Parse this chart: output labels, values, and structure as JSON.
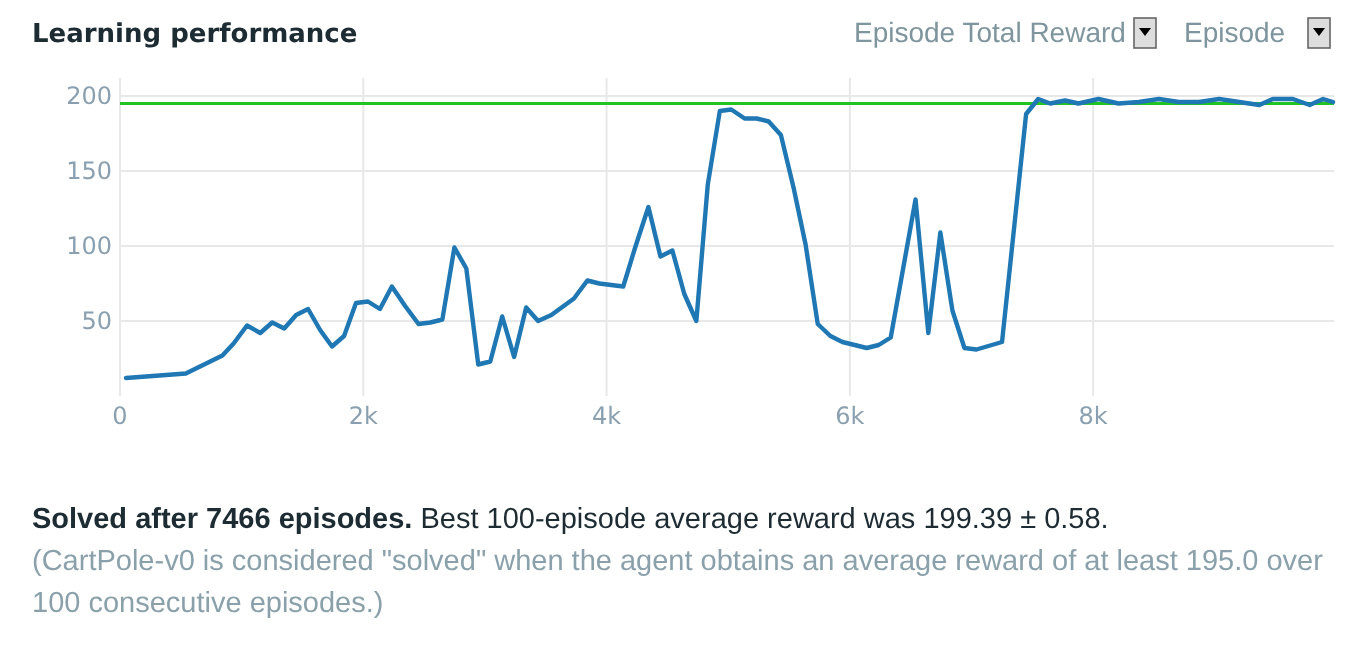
{
  "chart_data": {
    "type": "line",
    "title": "Learning performance",
    "x": [
      50,
      541,
      842,
      934,
      1044,
      1153,
      1251,
      1350,
      1448,
      1546,
      1645,
      1743,
      1842,
      1940,
      2038,
      2137,
      2235,
      2344,
      2454,
      2552,
      2650,
      2749,
      2847,
      2945,
      3044,
      3142,
      3240,
      3339,
      3437,
      3546,
      3732,
      3842,
      3940,
      4137,
      4235,
      4344,
      4443,
      4541,
      4639,
      4738,
      4832,
      4931,
      5025,
      5135,
      5234,
      5333,
      5433,
      5537,
      5636,
      5736,
      5840,
      5939,
      6039,
      6138,
      6237,
      6336,
      6540,
      6645,
      6744,
      6843,
      6942,
      7041,
      7251,
      7449,
      7548,
      7647,
      7769,
      7879,
      8044,
      8209,
      8375,
      8540,
      8705,
      8871,
      9036,
      9201,
      9366,
      9477,
      9642,
      9780,
      9890,
      9972
    ],
    "series": [
      {
        "color": "#1f77b4",
        "values": [
          12,
          15,
          27,
          35,
          47,
          42,
          49,
          45,
          54,
          58,
          44,
          33,
          40,
          62,
          63,
          58,
          73,
          60,
          48,
          49,
          51,
          99,
          85,
          21,
          23,
          53,
          26,
          59,
          50,
          54,
          65,
          77,
          75,
          73,
          99,
          126,
          93,
          97,
          68,
          50,
          141,
          190,
          191,
          185,
          185,
          183,
          174,
          139,
          101,
          48,
          40,
          36,
          34,
          32,
          34,
          39,
          131,
          42,
          109,
          57,
          32,
          31,
          36,
          188,
          198,
          195,
          197,
          195,
          198,
          195,
          196,
          198,
          196,
          196,
          198,
          196,
          194,
          198,
          198,
          194,
          198,
          196
        ]
      }
    ],
    "ylim": [
      0,
      212
    ],
    "yticks": [
      50,
      100,
      150,
      200
    ],
    "xlim": [
      0,
      9980
    ],
    "xticks": [
      0,
      {
        "value": 2000,
        "label": "2k"
      },
      {
        "value": 4000,
        "label": "4k"
      },
      {
        "value": 6000,
        "label": "6k"
      },
      {
        "value": 8000,
        "label": "8k"
      }
    ],
    "grid": true,
    "marker": "none",
    "line_style": "solid",
    "ref_lines": [
      {
        "axis": "y",
        "value": 195,
        "color": "#22c322"
      }
    ],
    "annotations": [
      "Episode Total Reward",
      "Episode",
      "Solved after 7466 episodes.",
      "Best 100-episode average reward was 199.39 ± 0.58.",
      "(CartPole-v0 is considered \"solved\" when the agent obtains an average reward of at least 195.0 over 100 consecutive episodes.)"
    ]
  }
}
